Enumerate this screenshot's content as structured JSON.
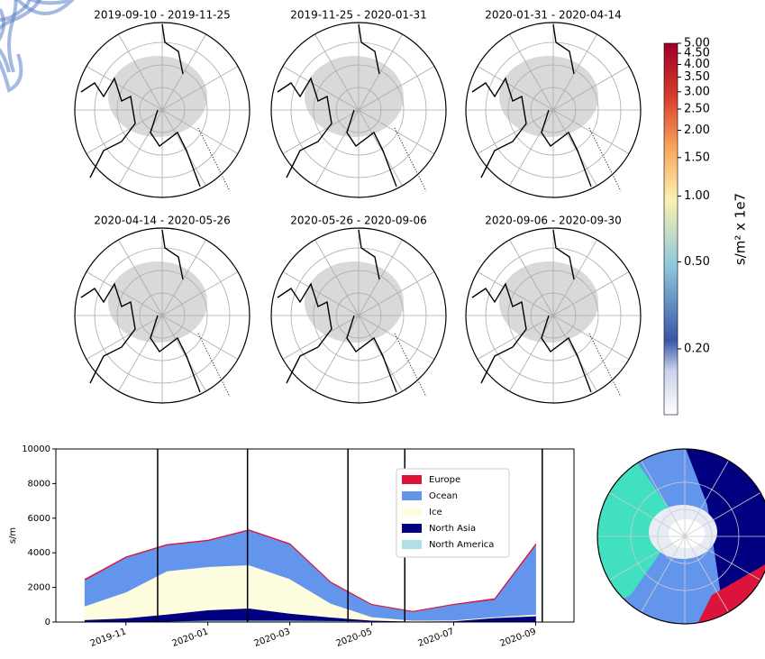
{
  "panels": [
    {
      "title": "2019-09-10 -  2019-11-25"
    },
    {
      "title": "2019-11-25 -  2020-01-31"
    },
    {
      "title": "2020-01-31 -  2020-04-14"
    },
    {
      "title": "2020-04-14 -  2020-05-26"
    },
    {
      "title": "2020-05-26 -  2020-09-06"
    },
    {
      "title": "2020-09-06 -  2020-09-30"
    }
  ],
  "colorbar": {
    "label": "s/m² x 1e7",
    "lim": [
      0.1,
      5
    ],
    "log": true,
    "ticks": [
      {
        "value": 0.2,
        "label": "0.20"
      },
      {
        "value": 0.5,
        "label": "0.50"
      },
      {
        "value": 1,
        "label": "1.00"
      },
      {
        "value": 1.5,
        "label": "1.50"
      },
      {
        "value": 2,
        "label": "2.00"
      },
      {
        "value": 2.5,
        "label": "2.50"
      },
      {
        "value": 3,
        "label": "3.00"
      },
      {
        "value": 3.5,
        "label": "3.50"
      },
      {
        "value": 4,
        "label": "4.00"
      },
      {
        "value": 4.5,
        "label": "4.50"
      },
      {
        "value": 5,
        "label": "5.00"
      }
    ]
  },
  "chart_data": {
    "type": "area",
    "stacked": true,
    "ylabel": "s/m",
    "x": [
      "2019-10",
      "2019-11",
      "2019-12",
      "2020-01",
      "2020-02",
      "2020-03",
      "2020-04",
      "2020-05",
      "2020-06",
      "2020-07",
      "2020-08",
      "2020-09"
    ],
    "series": [
      {
        "name": "Europe",
        "color": "#dc143c",
        "values": [
          50,
          30,
          30,
          30,
          30,
          30,
          30,
          20,
          20,
          20,
          50,
          50
        ]
      },
      {
        "name": "Ocean",
        "color": "#6495ed",
        "values": [
          1500,
          2000,
          1500,
          1500,
          2000,
          2000,
          1200,
          700,
          500,
          900,
          1000,
          4000
        ]
      },
      {
        "name": "Ice",
        "color": "#fffde0",
        "values": [
          800,
          1500,
          2500,
          2500,
          2500,
          2000,
          800,
          200,
          50,
          50,
          50,
          100
        ]
      },
      {
        "name": "North Asia",
        "color": "#000080",
        "values": [
          100,
          200,
          400,
          600,
          700,
          400,
          200,
          50,
          20,
          30,
          200,
          300
        ]
      },
      {
        "name": "North America",
        "color": "#b0e0e6",
        "values": [
          30,
          30,
          50,
          100,
          100,
          100,
          80,
          50,
          30,
          30,
          50,
          50
        ]
      }
    ],
    "xlim": [
      "2019-09-10",
      "2020-09-30"
    ],
    "xticks": [
      "2019-11",
      "2020-01",
      "2020-03",
      "2020-05",
      "2020-07",
      "2020-09"
    ],
    "ylim": [
      0,
      10000
    ],
    "yticks": [
      0,
      2000,
      4000,
      6000,
      8000,
      10000
    ],
    "legend": "upper right"
  }
}
